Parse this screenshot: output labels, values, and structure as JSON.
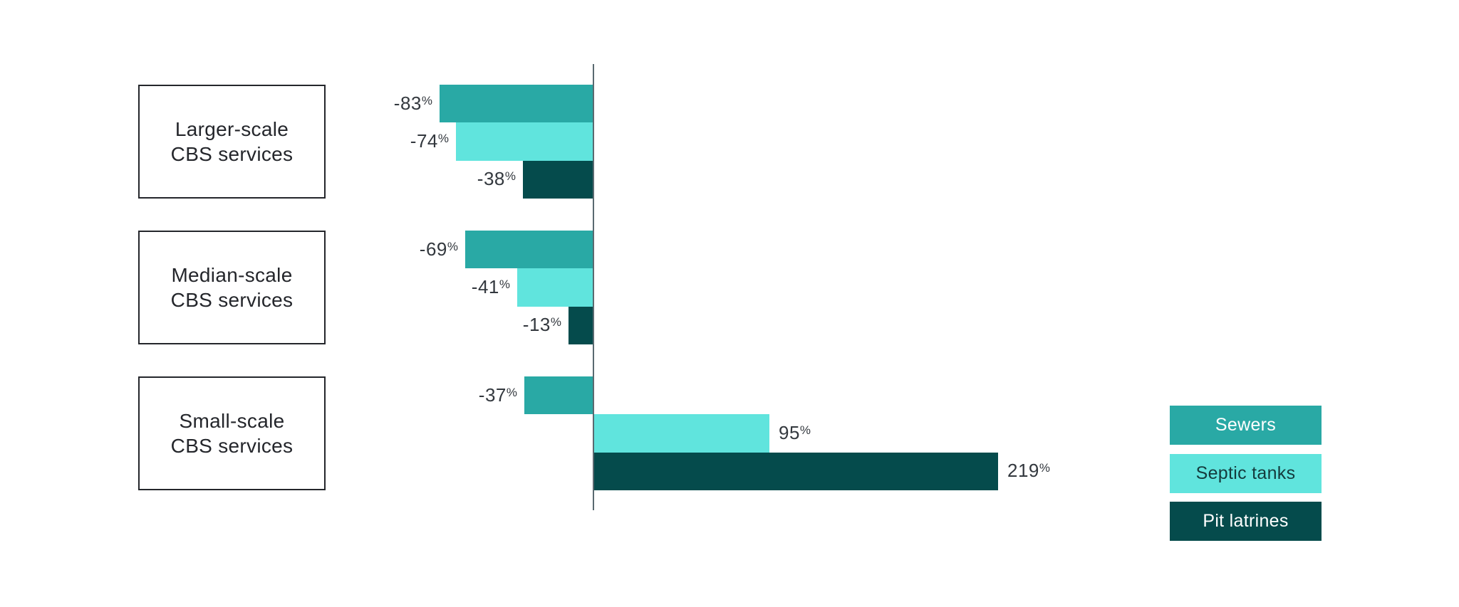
{
  "chart_data": {
    "type": "bar",
    "orientation": "horizontal",
    "unit": "%",
    "categories": [
      "Larger-scale CBS services",
      "Median-scale CBS services",
      "Small-scale CBS services"
    ],
    "category_lines": [
      [
        "Larger-scale",
        "CBS services"
      ],
      [
        "Median-scale",
        "CBS services"
      ],
      [
        "Small-scale",
        "CBS services"
      ]
    ],
    "series": [
      {
        "name": "Sewers",
        "color": "#29a9a5",
        "legend_text_color": "#ffffff",
        "values": [
          -83,
          -69,
          -37
        ]
      },
      {
        "name": "Septic tanks",
        "color": "#60e4dd",
        "legend_text_color": "#143a3c",
        "values": [
          -74,
          -41,
          95
        ]
      },
      {
        "name": "Pit latrines",
        "color": "#054b4c",
        "legend_text_color": "#ffffff",
        "values": [
          -38,
          -13,
          219
        ]
      }
    ],
    "value_labels": [
      [
        "-83%",
        "-69%",
        "-37%"
      ],
      [
        "-74%",
        "-41%",
        "95%"
      ],
      [
        "-38%",
        "-13%",
        "219%"
      ]
    ],
    "x_range_pct": [
      -100,
      250
    ],
    "zero_axis": true,
    "grid": false,
    "legend_position": "bottom-right"
  },
  "styles": {
    "background": "#ffffff",
    "axis_color": "#5a6a70",
    "value_label_color": "#33383e",
    "category_box_border": "#24262b",
    "category_text_color": "#24262b"
  }
}
